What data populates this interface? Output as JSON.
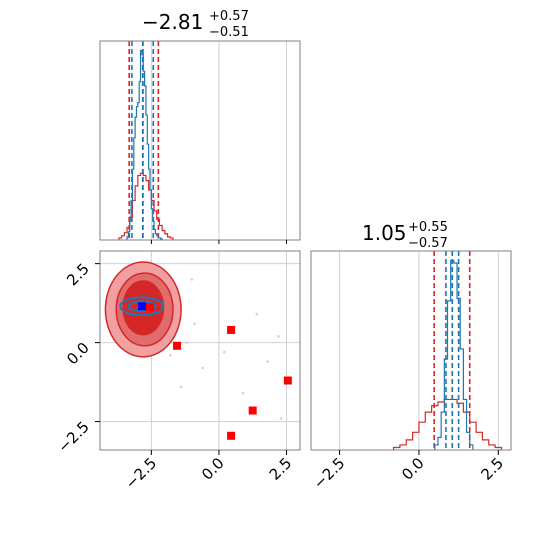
{
  "colors": {
    "red": "#d62728",
    "blue": "#1f77b4",
    "marker_red": "#ff0000",
    "marker_blue": "#0000ff",
    "fill_light": "#f0a0a0",
    "fill_mid": "#e06c6c",
    "fill_dark": "#d62728",
    "grid": "#d0d0d0",
    "frame": "#808080"
  },
  "panel_titles": {
    "param1": {
      "median": "−2.81",
      "plus": "+0.57",
      "minus": "−0.51"
    },
    "param2": {
      "median": "1.05",
      "plus": "+0.55",
      "minus": "−0.57"
    }
  },
  "chart_data": [
    {
      "type": "histogram",
      "panel": "marginal-param1",
      "xlim": [
        -4.4,
        3.0
      ],
      "grid": true,
      "series": [
        {
          "color": "red",
          "bin_edges": [
            -3.7,
            -3.6,
            -3.5,
            -3.4,
            -3.3,
            -3.2,
            -3.1,
            -3.0,
            -2.9,
            -2.8,
            -2.7,
            -2.6,
            -2.5,
            -2.4,
            -2.3,
            -2.2,
            -2.1,
            -2.0,
            -1.9,
            -1.8,
            -1.7
          ],
          "counts": [
            2,
            4,
            7,
            12,
            22,
            38,
            52,
            62,
            64,
            62,
            57,
            48,
            38,
            28,
            20,
            14,
            9,
            6,
            3,
            2
          ],
          "quantile_lines": [
            -3.32,
            -2.81,
            -2.24
          ]
        },
        {
          "color": "blue",
          "bin_edges": [
            -3.4,
            -3.35,
            -3.3,
            -3.25,
            -3.2,
            -3.15,
            -3.1,
            -3.05,
            -3.0,
            -2.95,
            -2.9,
            -2.85,
            -2.8,
            -2.75,
            -2.7,
            -2.65,
            -2.6,
            -2.55,
            -2.5,
            -2.45,
            -2.4,
            -2.35,
            -2.3,
            -2.25,
            -2.2,
            -2.15,
            -2.1
          ],
          "counts": [
            3,
            8,
            18,
            38,
            68,
            98,
            118,
            128,
            132,
            152,
            182,
            178,
            162,
            148,
            120,
            92,
            68,
            48,
            30,
            18,
            10,
            6,
            4,
            2,
            2,
            1
          ],
          "quantile_lines": [
            -3.22,
            -2.82,
            -2.43
          ]
        }
      ]
    },
    {
      "type": "histogram",
      "panel": "marginal-param2",
      "xlim": [
        -3.4,
        2.9
      ],
      "x_ticks": [
        "−2.5",
        "0.0",
        "2.5"
      ],
      "grid": true,
      "series": [
        {
          "color": "red",
          "bin_edges": [
            -0.8,
            -0.6,
            -0.4,
            -0.2,
            0.0,
            0.2,
            0.4,
            0.6,
            0.8,
            1.0,
            1.2,
            1.4,
            1.6,
            1.8,
            2.0,
            2.2,
            2.4,
            2.6
          ],
          "counts": [
            2,
            4,
            8,
            14,
            22,
            30,
            35,
            38,
            40,
            40,
            37,
            30,
            22,
            14,
            8,
            4,
            2
          ],
          "quantile_lines": [
            0.48,
            1.05,
            1.6
          ]
        },
        {
          "color": "blue",
          "bin_edges": [
            0.5,
            0.6,
            0.7,
            0.8,
            0.9,
            1.0,
            1.1,
            1.2,
            1.3,
            1.4,
            1.5,
            1.6,
            1.7
          ],
          "counts": [
            4,
            10,
            30,
            72,
            118,
            150,
            148,
            120,
            80,
            40,
            14,
            4
          ],
          "quantile_lines": [
            0.85,
            1.05,
            1.25
          ]
        }
      ]
    },
    {
      "type": "scatter",
      "panel": "joint",
      "xlim": [
        -4.4,
        3.0
      ],
      "ylim": [
        -3.4,
        2.9
      ],
      "x_ticks": [
        "−2.5",
        "0.0",
        "2.5"
      ],
      "y_ticks": [
        "−2.5",
        "0.0",
        "2.5"
      ],
      "grid": true,
      "contour_levels": [
        {
          "fill": "fill_light",
          "cx": -2.8,
          "cy": 1.05,
          "rx": 1.4,
          "ry": 1.5
        },
        {
          "fill": "fill_mid",
          "cx": -2.75,
          "cy": 1.05,
          "rx": 1.05,
          "ry": 1.15
        },
        {
          "fill": "fill_dark",
          "cx": -2.8,
          "cy": 1.1,
          "rx": 0.75,
          "ry": 0.85
        }
      ],
      "blue_contours": [
        {
          "cx": -2.85,
          "cy": 1.15,
          "rx": 0.8,
          "ry": 0.28
        },
        {
          "cx": -2.85,
          "cy": 1.15,
          "rx": 0.5,
          "ry": 0.15
        }
      ],
      "red_markers": [
        {
          "x": -2.55,
          "y": 1.12
        },
        {
          "x": -1.55,
          "y": -0.1
        },
        {
          "x": 0.45,
          "y": 0.4
        },
        {
          "x": 2.55,
          "y": -1.2
        },
        {
          "x": 1.25,
          "y": -2.15
        },
        {
          "x": 0.45,
          "y": -2.95
        }
      ],
      "blue_markers": [
        {
          "x": -2.85,
          "y": 1.15
        }
      ],
      "faint_points": [
        {
          "x": -2.2,
          "y": 0.2
        },
        {
          "x": -1.8,
          "y": -0.4
        },
        {
          "x": -1.2,
          "y": 0.0
        },
        {
          "x": -0.6,
          "y": -0.8
        },
        {
          "x": 0.9,
          "y": -1.6
        },
        {
          "x": 1.8,
          "y": -0.6
        },
        {
          "x": 2.2,
          "y": 0.2
        },
        {
          "x": 2.3,
          "y": -2.4
        },
        {
          "x": -3.2,
          "y": -0.4
        },
        {
          "x": -1.4,
          "y": -1.4
        },
        {
          "x": 0.2,
          "y": -0.3
        },
        {
          "x": -0.9,
          "y": 0.6
        },
        {
          "x": -3.8,
          "y": 1.9
        },
        {
          "x": -1.0,
          "y": 2.0
        },
        {
          "x": 1.4,
          "y": 0.9
        }
      ]
    }
  ]
}
